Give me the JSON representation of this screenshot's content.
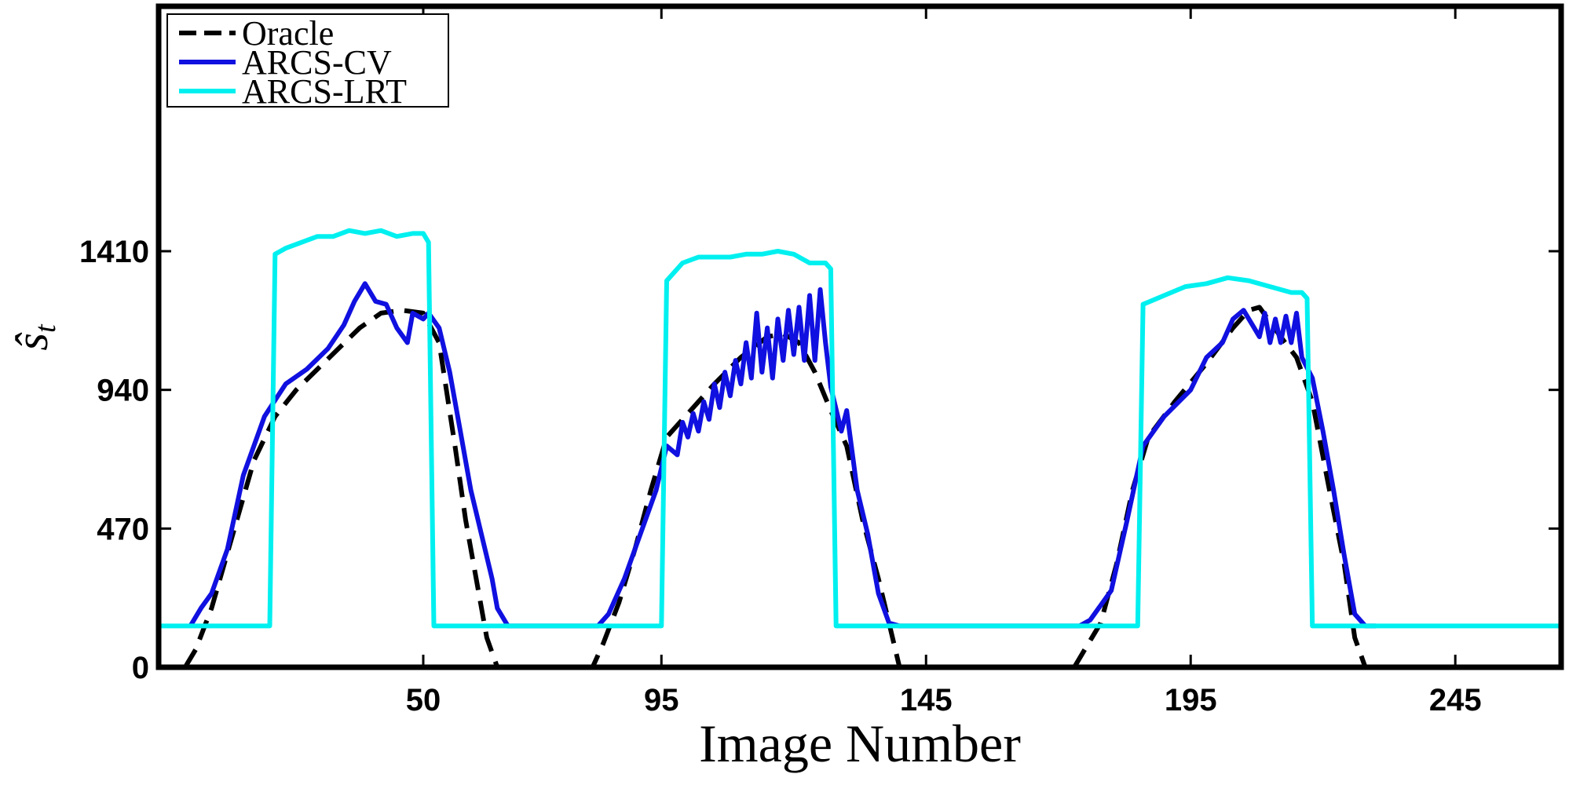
{
  "chart_data": {
    "type": "line",
    "title": "",
    "xlabel": "Image Number",
    "ylabel": "ŝ",
    "ylabel_subscript": "t",
    "xlim": [
      0,
      265
    ],
    "ylim": [
      0,
      2240
    ],
    "x_ticks": [
      50,
      95,
      145,
      195,
      245
    ],
    "x_tick_labels": [
      "50",
      "95",
      "145",
      "195",
      "245"
    ],
    "y_ticks": [
      0,
      470,
      940,
      1410
    ],
    "y_tick_labels": [
      "0",
      "470",
      "940",
      "1410"
    ],
    "grid": false,
    "legend_position": "top-left",
    "series": [
      {
        "name": "Oracle",
        "color": "#000000",
        "dash": "dashed",
        "points": [
          [
            5,
            0
          ],
          [
            7,
            60
          ],
          [
            10,
            200
          ],
          [
            14,
            450
          ],
          [
            18,
            700
          ],
          [
            22,
            850
          ],
          [
            26,
            940
          ],
          [
            30,
            1010
          ],
          [
            34,
            1080
          ],
          [
            38,
            1150
          ],
          [
            42,
            1200
          ],
          [
            46,
            1210
          ],
          [
            50,
            1200
          ],
          [
            53,
            1100
          ],
          [
            56,
            750
          ],
          [
            58,
            500
          ],
          [
            60,
            300
          ],
          [
            62,
            100
          ],
          [
            64,
            0
          ],
          [
            82,
            0
          ],
          [
            84,
            80
          ],
          [
            87,
            220
          ],
          [
            90,
            400
          ],
          [
            93,
            600
          ],
          [
            96,
            780
          ],
          [
            100,
            860
          ],
          [
            105,
            960
          ],
          [
            110,
            1050
          ],
          [
            115,
            1120
          ],
          [
            118,
            1130
          ],
          [
            121,
            1100
          ],
          [
            124,
            1000
          ],
          [
            127,
            870
          ],
          [
            130,
            750
          ],
          [
            133,
            500
          ],
          [
            136,
            300
          ],
          [
            138,
            150
          ],
          [
            140,
            0
          ],
          [
            173,
            0
          ],
          [
            175,
            60
          ],
          [
            178,
            150
          ],
          [
            181,
            350
          ],
          [
            184,
            600
          ],
          [
            187,
            780
          ],
          [
            192,
            900
          ],
          [
            198,
            1030
          ],
          [
            203,
            1150
          ],
          [
            206,
            1210
          ],
          [
            208,
            1220
          ],
          [
            212,
            1120
          ],
          [
            215,
            1050
          ],
          [
            218,
            900
          ],
          [
            221,
            620
          ],
          [
            224,
            350
          ],
          [
            226,
            100
          ],
          [
            228,
            0
          ]
        ]
      },
      {
        "name": "ARCS-CV",
        "color": "#1010e0",
        "dash": "solid",
        "points": [
          [
            6,
            140
          ],
          [
            8,
            200
          ],
          [
            10,
            250
          ],
          [
            13,
            400
          ],
          [
            16,
            650
          ],
          [
            20,
            850
          ],
          [
            24,
            960
          ],
          [
            28,
            1010
          ],
          [
            32,
            1080
          ],
          [
            35,
            1160
          ],
          [
            37,
            1240
          ],
          [
            39,
            1300
          ],
          [
            41,
            1240
          ],
          [
            43,
            1230
          ],
          [
            45,
            1150
          ],
          [
            47,
            1100
          ],
          [
            48,
            1200
          ],
          [
            50,
            1180
          ],
          [
            51,
            1200
          ],
          [
            53,
            1150
          ],
          [
            55,
            1000
          ],
          [
            57,
            800
          ],
          [
            59,
            600
          ],
          [
            61,
            450
          ],
          [
            63,
            300
          ],
          [
            64,
            200
          ],
          [
            66,
            140
          ],
          [
            70,
            140
          ],
          [
            83,
            140
          ],
          [
            85,
            180
          ],
          [
            88,
            300
          ],
          [
            91,
            450
          ],
          [
            94,
            600
          ],
          [
            96,
            750
          ],
          [
            98,
            720
          ],
          [
            99,
            830
          ],
          [
            100,
            780
          ],
          [
            101,
            860
          ],
          [
            102,
            800
          ],
          [
            103,
            900
          ],
          [
            104,
            840
          ],
          [
            105,
            960
          ],
          [
            106,
            880
          ],
          [
            107,
            1000
          ],
          [
            108,
            920
          ],
          [
            109,
            1040
          ],
          [
            110,
            960
          ],
          [
            111,
            1100
          ],
          [
            112,
            980
          ],
          [
            113,
            1200
          ],
          [
            114,
            1000
          ],
          [
            115,
            1150
          ],
          [
            116,
            980
          ],
          [
            117,
            1180
          ],
          [
            118,
            1040
          ],
          [
            119,
            1210
          ],
          [
            120,
            1060
          ],
          [
            121,
            1220
          ],
          [
            122,
            1040
          ],
          [
            123,
            1260
          ],
          [
            124,
            1040
          ],
          [
            125,
            1280
          ],
          [
            126,
            1100
          ],
          [
            127,
            950
          ],
          [
            129,
            800
          ],
          [
            130,
            870
          ],
          [
            132,
            600
          ],
          [
            134,
            450
          ],
          [
            136,
            250
          ],
          [
            138,
            150
          ],
          [
            140,
            140
          ],
          [
            174,
            140
          ],
          [
            176,
            160
          ],
          [
            180,
            260
          ],
          [
            183,
            500
          ],
          [
            186,
            750
          ],
          [
            190,
            850
          ],
          [
            195,
            940
          ],
          [
            198,
            1050
          ],
          [
            201,
            1100
          ],
          [
            203,
            1180
          ],
          [
            205,
            1210
          ],
          [
            207,
            1150
          ],
          [
            208,
            1120
          ],
          [
            209,
            1200
          ],
          [
            210,
            1100
          ],
          [
            211,
            1180
          ],
          [
            212,
            1100
          ],
          [
            213,
            1190
          ],
          [
            214,
            1100
          ],
          [
            215,
            1200
          ],
          [
            216,
            1050
          ],
          [
            218,
            980
          ],
          [
            220,
            800
          ],
          [
            222,
            600
          ],
          [
            224,
            380
          ],
          [
            226,
            180
          ],
          [
            228,
            140
          ],
          [
            230,
            140
          ]
        ]
      },
      {
        "name": "ARCS-LRT",
        "color": "#00f0f0",
        "dash": "solid",
        "points": [
          [
            0,
            140
          ],
          [
            21,
            140
          ],
          [
            22,
            1400
          ],
          [
            24,
            1420
          ],
          [
            27,
            1440
          ],
          [
            30,
            1460
          ],
          [
            33,
            1460
          ],
          [
            36,
            1480
          ],
          [
            39,
            1470
          ],
          [
            42,
            1480
          ],
          [
            45,
            1460
          ],
          [
            48,
            1470
          ],
          [
            50,
            1470
          ],
          [
            51,
            1440
          ],
          [
            52,
            140
          ],
          [
            95,
            140
          ],
          [
            96,
            1310
          ],
          [
            99,
            1370
          ],
          [
            102,
            1390
          ],
          [
            105,
            1390
          ],
          [
            108,
            1390
          ],
          [
            111,
            1400
          ],
          [
            114,
            1400
          ],
          [
            117,
            1410
          ],
          [
            120,
            1400
          ],
          [
            123,
            1370
          ],
          [
            126,
            1370
          ],
          [
            127,
            1350
          ],
          [
            128,
            140
          ],
          [
            185,
            140
          ],
          [
            186,
            1230
          ],
          [
            190,
            1260
          ],
          [
            194,
            1290
          ],
          [
            198,
            1300
          ],
          [
            202,
            1320
          ],
          [
            206,
            1310
          ],
          [
            210,
            1290
          ],
          [
            214,
            1270
          ],
          [
            216,
            1270
          ],
          [
            217,
            1250
          ],
          [
            218,
            140
          ],
          [
            265,
            140
          ]
        ]
      }
    ]
  }
}
